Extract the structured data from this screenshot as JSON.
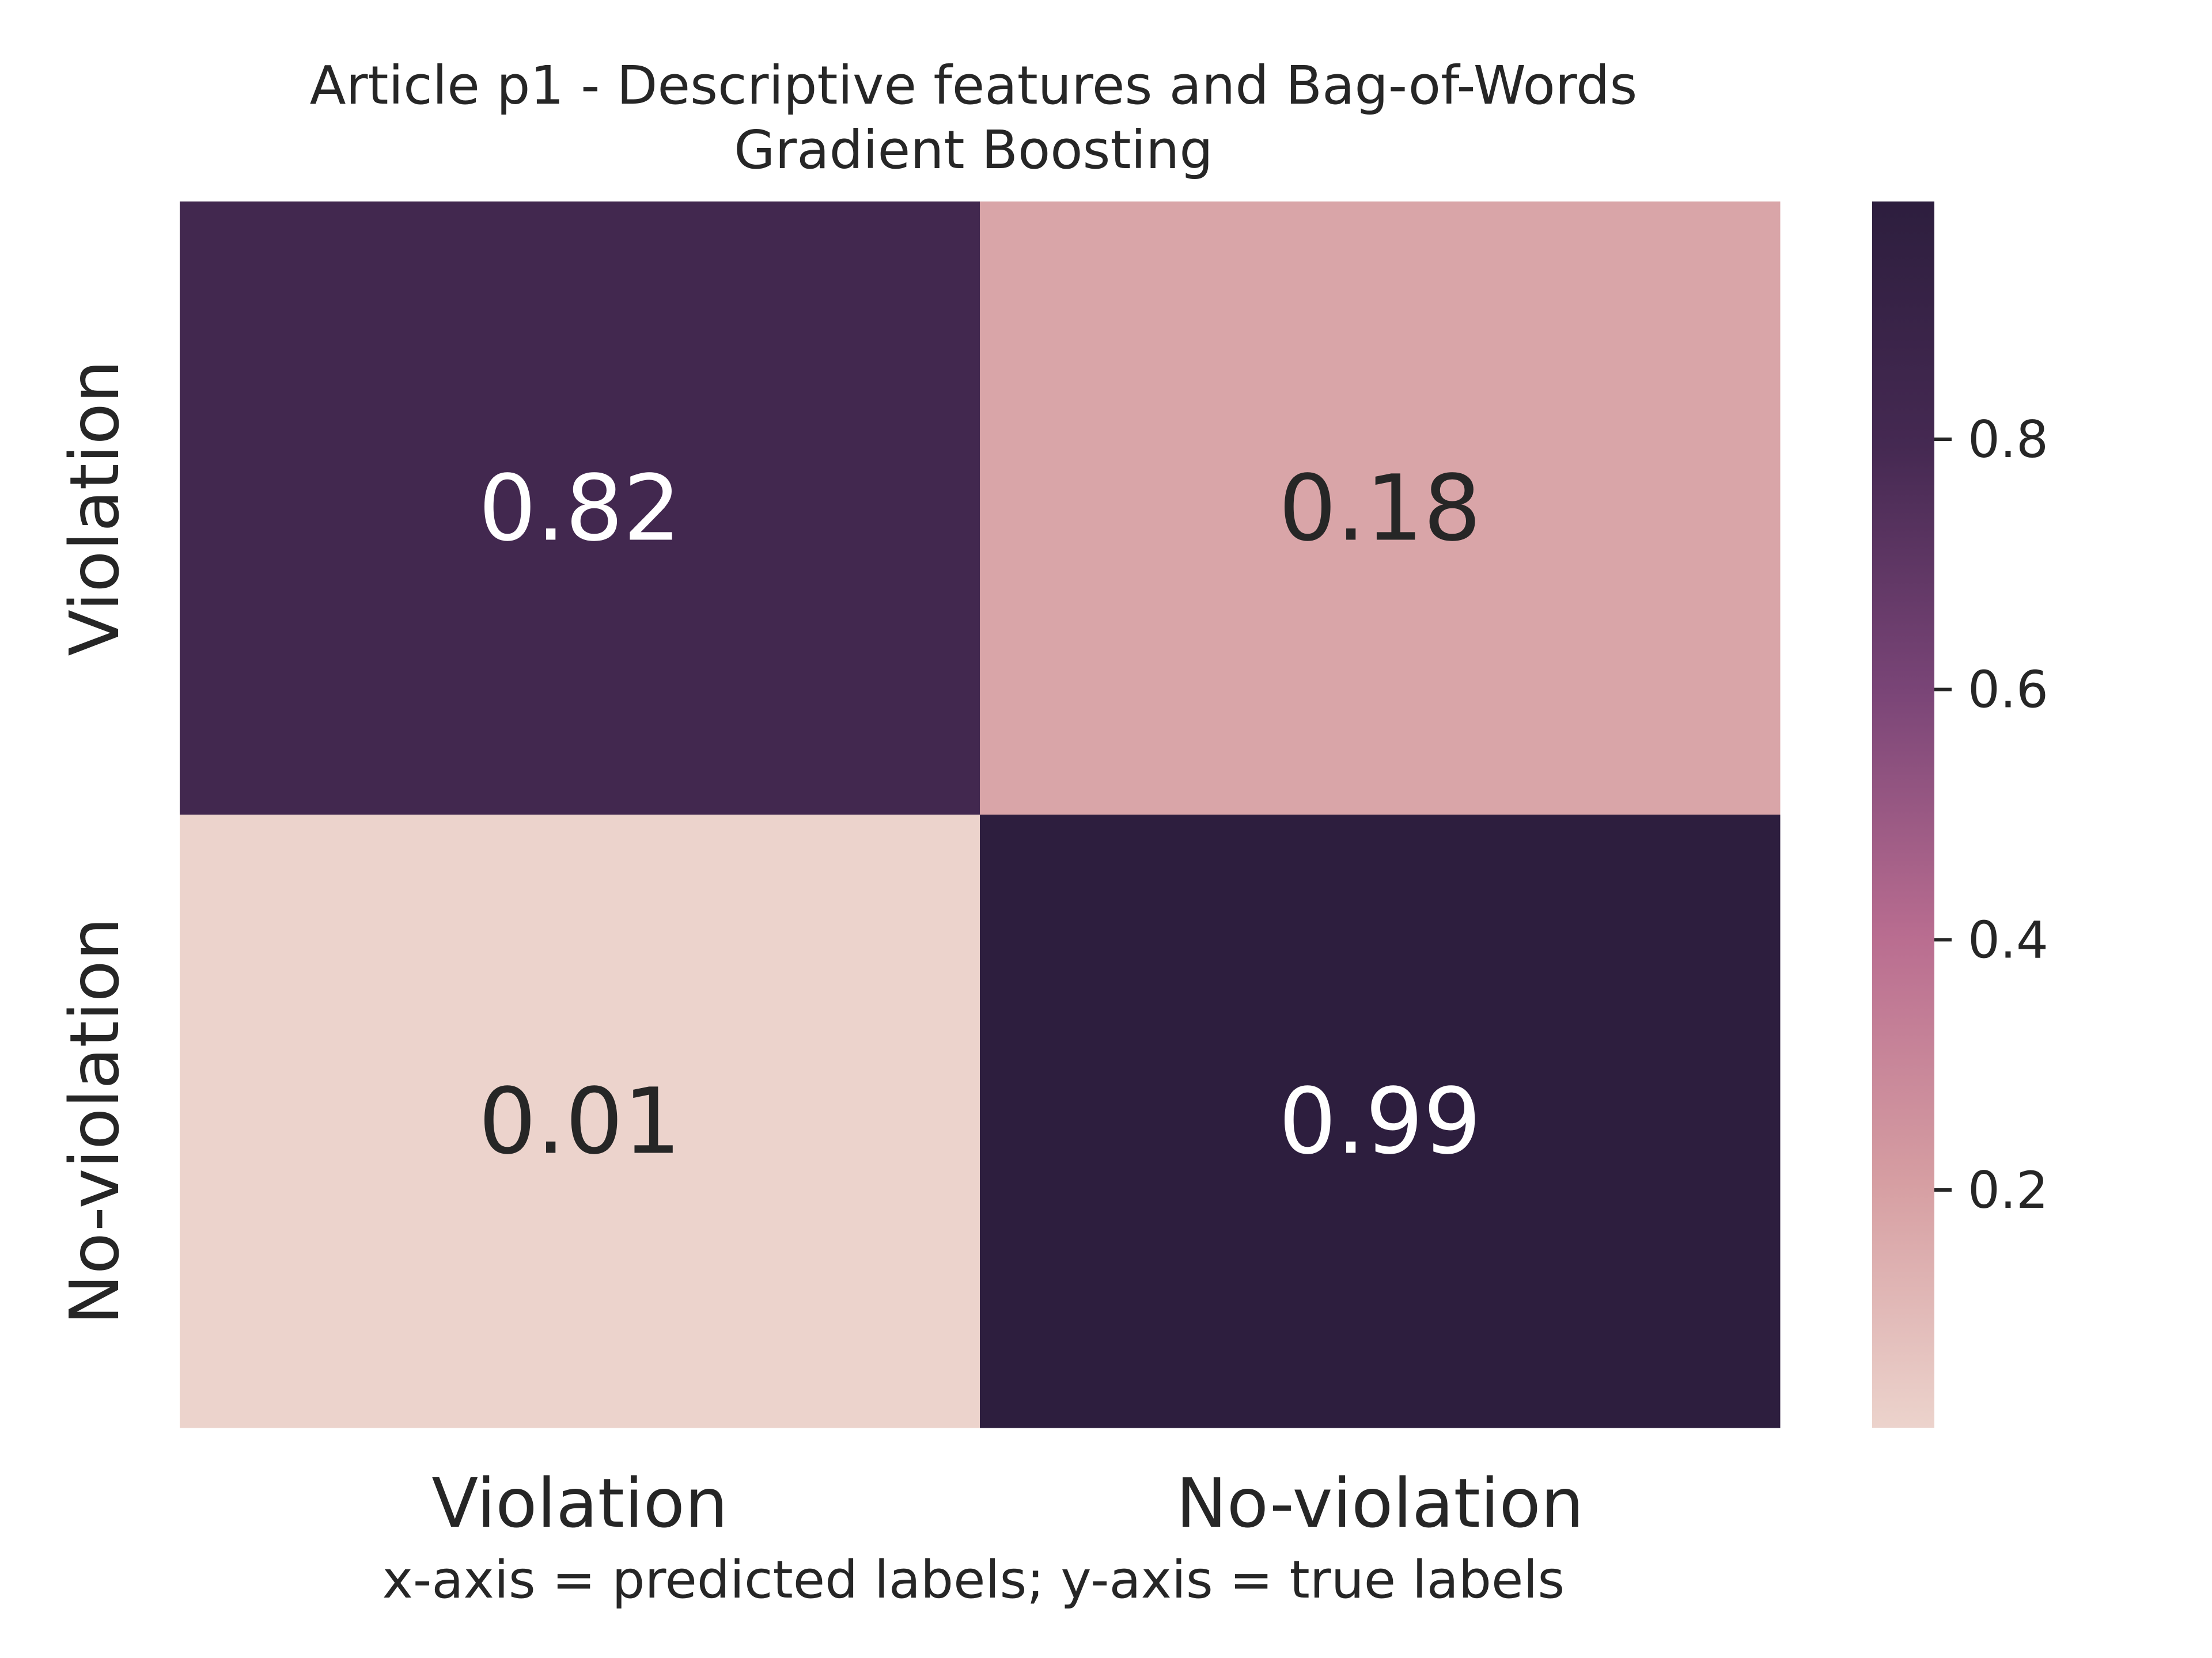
{
  "chart_data": {
    "type": "heatmap",
    "title_line1": "Article p1 - Descriptive features and Bag-of-Words",
    "title_line2": "Gradient Boosting",
    "xlabel": "x-axis = predicted labels; y-axis = true labels",
    "ylabel": "",
    "x_categories": [
      "Violation",
      "No-violation"
    ],
    "y_categories": [
      "Violation",
      "No-violation"
    ],
    "values": [
      [
        0.82,
        0.18
      ],
      [
        0.01,
        0.99
      ]
    ],
    "value_labels": [
      [
        "0.82",
        "0.18"
      ],
      [
        "0.01",
        "0.99"
      ]
    ],
    "colorbar": {
      "range": [
        0.01,
        0.99
      ],
      "ticks": [
        0.2,
        0.4,
        0.6,
        0.8
      ],
      "tick_labels": [
        "0.2",
        "0.4",
        "0.6",
        "0.8"
      ]
    },
    "colormap_stops": [
      "#ecd3cc",
      "#d69ea2",
      "#b96d90",
      "#7a4577",
      "#452952",
      "#2d1e3e"
    ],
    "label_colors": {
      "light_text": "#ffffff",
      "dark_text": "#262626"
    }
  }
}
